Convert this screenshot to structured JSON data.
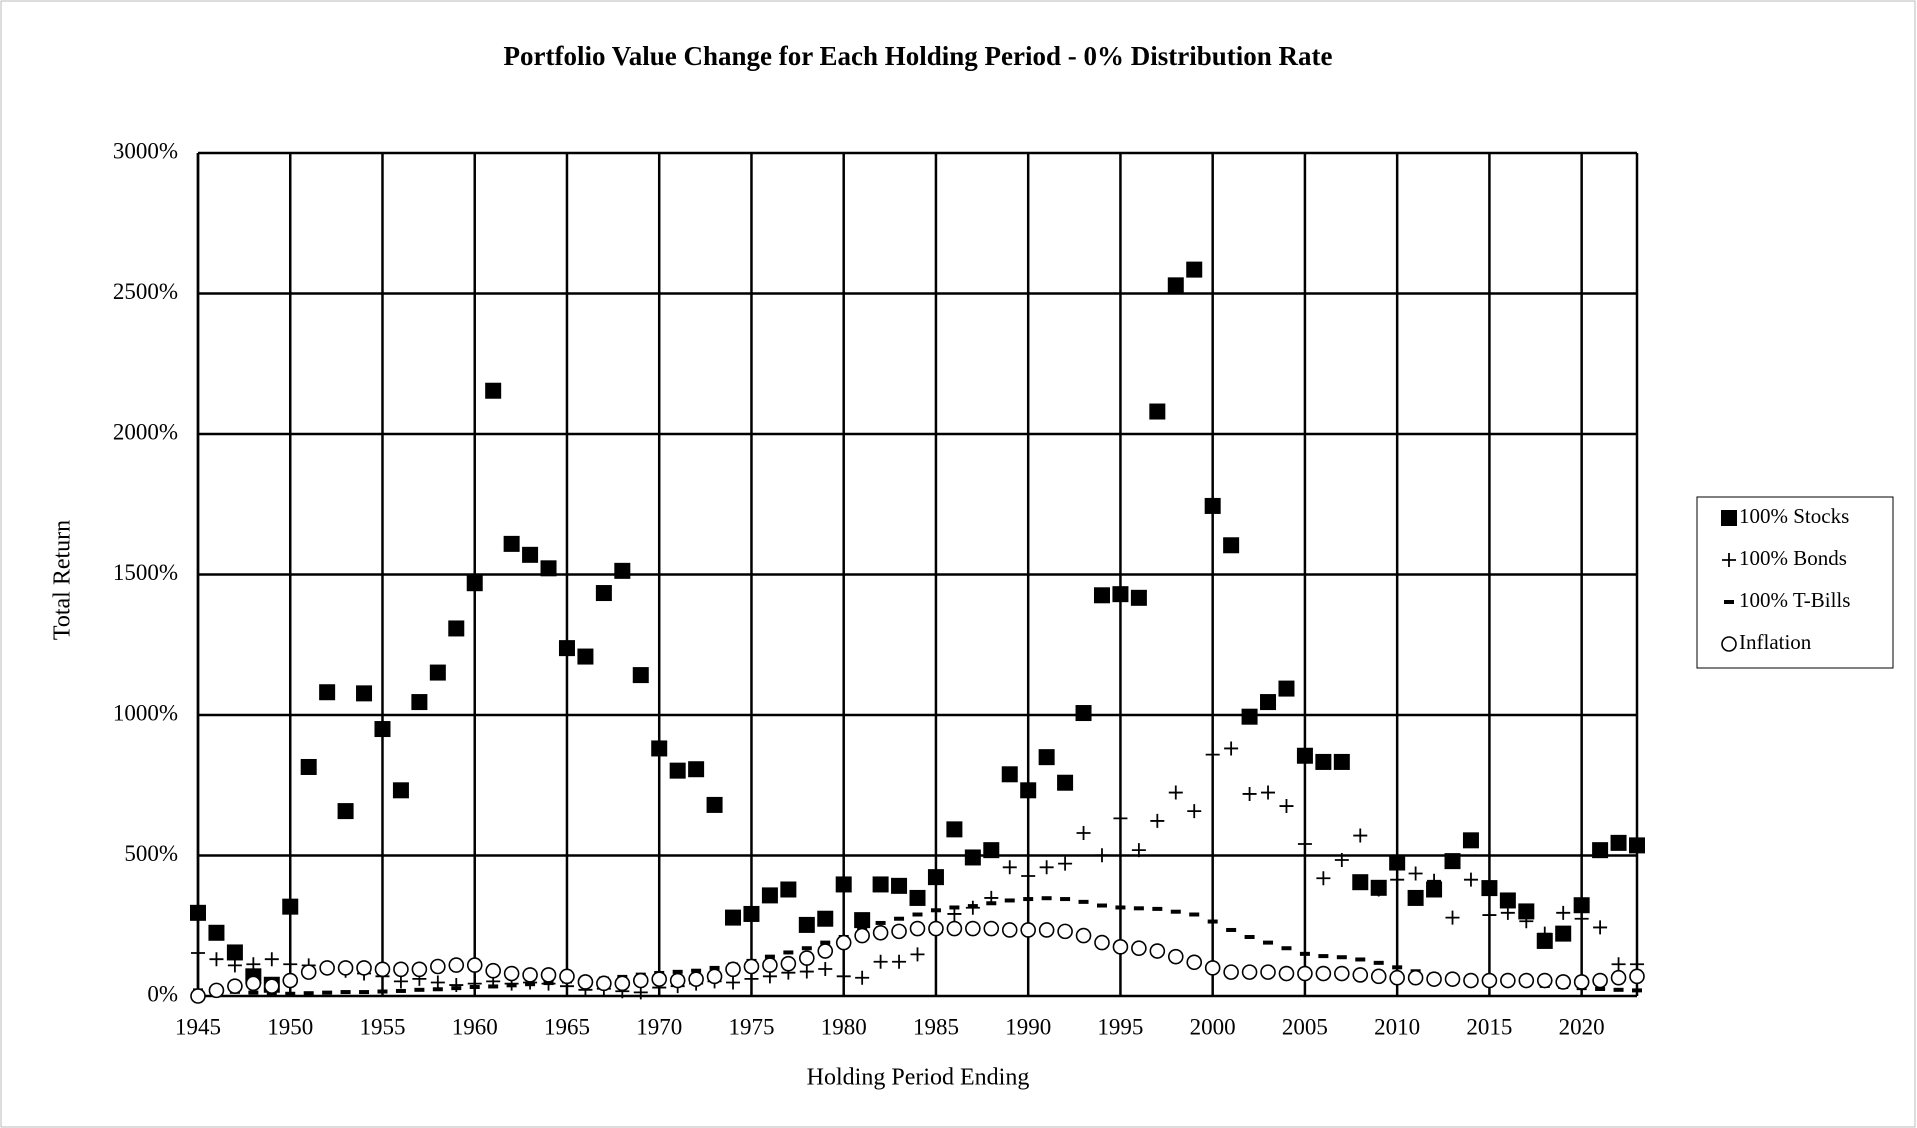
{
  "chart_data": {
    "type": "scatter",
    "title": "Portfolio Value Change for Each Holding Period - 0% Distribution Rate",
    "x_label": "Holding Period Ending",
    "y_label": "Total Return",
    "x": [
      1945,
      1946,
      1947,
      1948,
      1949,
      1950,
      1951,
      1952,
      1953,
      1954,
      1955,
      1956,
      1957,
      1958,
      1959,
      1960,
      1961,
      1962,
      1963,
      1964,
      1965,
      1966,
      1967,
      1968,
      1969,
      1970,
      1971,
      1972,
      1973,
      1974,
      1975,
      1976,
      1977,
      1978,
      1979,
      1980,
      1981,
      1982,
      1983,
      1984,
      1985,
      1986,
      1987,
      1988,
      1989,
      1990,
      1991,
      1992,
      1993,
      1994,
      1995,
      1996,
      1997,
      1998,
      1999,
      2000,
      2001,
      2002,
      2003,
      2004,
      2005,
      2006,
      2007,
      2008,
      2009,
      2010,
      2011,
      2012,
      2013,
      2014,
      2015,
      2016,
      2017,
      2018,
      2019,
      2020,
      2021,
      2022,
      2023
    ],
    "series": [
      {
        "name": "100% Stocks",
        "marker": "square",
        "color": "#000000",
        "values": [
          296,
          225,
          155,
          70,
          40,
          318,
          815,
          1081,
          658,
          1077,
          950,
          732,
          1046,
          1151,
          1308,
          1469,
          2154,
          1609,
          1570,
          1522,
          1238,
          1208,
          1434,
          1513,
          1142,
          881,
          802,
          807,
          680,
          279,
          292,
          358,
          379,
          253,
          275,
          397,
          270,
          397,
          392,
          349,
          423,
          593,
          493,
          519,
          789,
          732,
          850,
          759,
          1007,
          1426,
          1430,
          1417,
          2080,
          2529,
          2585,
          1744,
          1604,
          994,
          1046,
          1094,
          855,
          833,
          833,
          405,
          385,
          475,
          349,
          379,
          480,
          554,
          384,
          340,
          301,
          196,
          222,
          323,
          519,
          545,
          536
        ]
      },
      {
        "name": "100% Bonds",
        "marker": "plus",
        "color": "#000000",
        "values": [
          153,
          131,
          109,
          113,
          131,
          113,
          109,
          100,
          90,
          80,
          70,
          52,
          61,
          48,
          39,
          44,
          52,
          44,
          48,
          44,
          35,
          22,
          26,
          17,
          13,
          30,
          35,
          44,
          52,
          48,
          61,
          70,
          83,
          87,
          96,
          70,
          65,
          122,
          122,
          148,
          227,
          292,
          314,
          349,
          458,
          427,
          458,
          471,
          580,
          501,
          632,
          519,
          623,
          724,
          658,
          859,
          881,
          719,
          724,
          676,
          541,
          419,
          484,
          571,
          379,
          414,
          436,
          410,
          279,
          414,
          288,
          296,
          266,
          222,
          296,
          275,
          244,
          113,
          113
        ]
      },
      {
        "name": "100% T-Bills",
        "marker": "dash",
        "color": "#000000",
        "values": [
          20,
          18,
          15,
          12,
          10,
          8,
          10,
          12,
          14,
          14,
          16,
          18,
          22,
          24,
          28,
          32,
          34,
          38,
          42,
          46,
          52,
          58,
          62,
          68,
          76,
          82,
          86,
          90,
          100,
          112,
          125,
          140,
          155,
          170,
          190,
          210,
          235,
          260,
          275,
          290,
          305,
          315,
          320,
          330,
          340,
          345,
          348,
          345,
          335,
          322,
          315,
          312,
          310,
          300,
          290,
          265,
          235,
          210,
          190,
          170,
          150,
          142,
          138,
          130,
          118,
          102,
          88,
          76,
          66,
          58,
          50,
          45,
          40,
          36,
          32,
          28,
          25,
          22,
          20
        ]
      },
      {
        "name": "Inflation",
        "marker": "circle",
        "color": "#000000",
        "values": [
          0,
          20,
          35,
          45,
          35,
          55,
          85,
          100,
          100,
          100,
          95,
          95,
          95,
          105,
          110,
          110,
          90,
          80,
          75,
          75,
          70,
          50,
          45,
          45,
          55,
          60,
          55,
          60,
          70,
          95,
          105,
          110,
          115,
          135,
          160,
          190,
          215,
          225,
          230,
          240,
          240,
          240,
          240,
          240,
          235,
          235,
          235,
          230,
          215,
          190,
          175,
          170,
          160,
          140,
          120,
          100,
          85,
          85,
          85,
          80,
          80,
          80,
          80,
          75,
          70,
          65,
          65,
          60,
          60,
          55,
          55,
          55,
          55,
          55,
          50,
          50,
          55,
          65,
          70
        ]
      }
    ],
    "xlim": [
      1945,
      2023
    ],
    "xticks": [
      1945,
      1950,
      1955,
      1960,
      1965,
      1970,
      1975,
      1980,
      1985,
      1990,
      1995,
      2000,
      2005,
      2010,
      2015,
      2020
    ],
    "ylim": [
      0,
      3000
    ],
    "yticks": [
      {
        "value": 0,
        "label": "0%"
      },
      {
        "value": 500,
        "label": "500%"
      },
      {
        "value": 1000,
        "label": "1000%"
      },
      {
        "value": 1500,
        "label": "1500%"
      },
      {
        "value": 2000,
        "label": "2000%"
      },
      {
        "value": 2500,
        "label": "2500%"
      },
      {
        "value": 3000,
        "label": "3000%"
      }
    ],
    "grid": true,
    "legend": "right"
  }
}
